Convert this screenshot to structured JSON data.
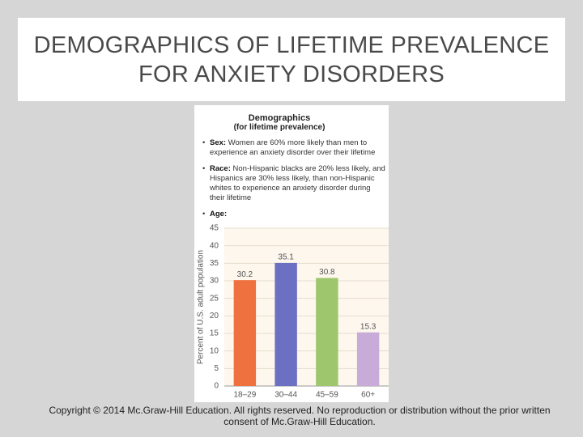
{
  "slide": {
    "title": "DEMOGRAPHICS OF LIFETIME PREVALENCE FOR ANXIETY DISORDERS",
    "footer": "Copyright © 2014 Mc.Graw-Hill Education. All rights reserved. No reproduction or distribution without the prior written consent of Mc.Graw-Hill Education."
  },
  "panel": {
    "heading": "Demographics",
    "subheading": "(for lifetime prevalence)",
    "bullets": [
      {
        "label": "Sex:",
        "text": "Women are 60% more likely than men to experience an anxiety disorder over their lifetime"
      },
      {
        "label": "Race:",
        "text": "Non-Hispanic blacks are 20% less likely, and Hispanics are 30% less likely, than non-Hispanic whites to experience an anxiety disorder during their lifetime"
      },
      {
        "label": "Age:"
      }
    ]
  },
  "chart_data": {
    "type": "bar",
    "ylabel": "Percent of U.S. adult population",
    "categories": [
      "18–29",
      "30–44",
      "45–59",
      "60+"
    ],
    "values": [
      30.2,
      35.1,
      30.8,
      15.3
    ],
    "colors": [
      "#ef7140",
      "#6b70c2",
      "#9ec66c",
      "#c9abd9"
    ],
    "ylim": [
      0,
      45
    ],
    "yticks": [
      0,
      5,
      10,
      15,
      20,
      25,
      30,
      35,
      40,
      45
    ],
    "grid": true
  }
}
